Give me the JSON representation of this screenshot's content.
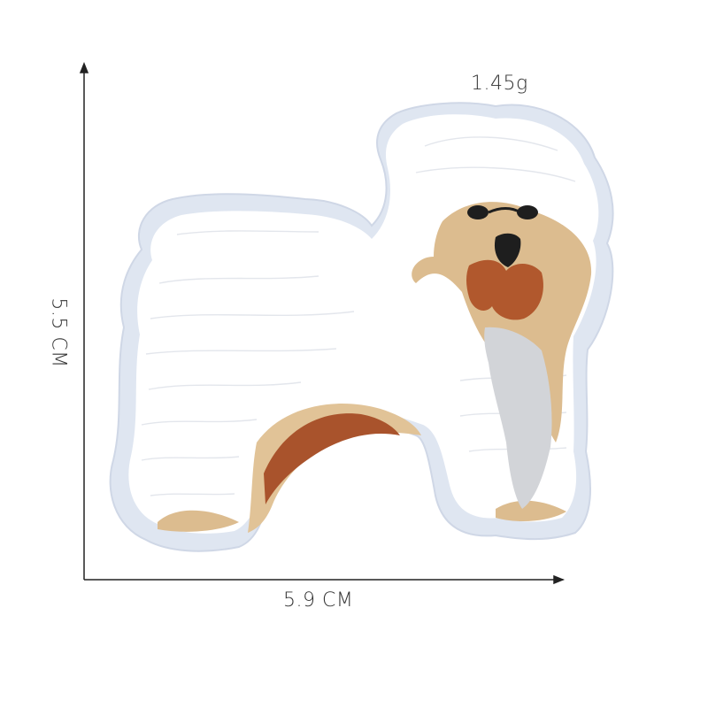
{
  "measurements": {
    "weight": "1.45g",
    "width": "5.9 CM",
    "height": "5.5 CM"
  },
  "product": {
    "subject": "embroidered-dog-patch",
    "colors": {
      "felt_backing": "#dfe6f1",
      "white_fur": "#ffffff",
      "thread_shadow": "#e8eaef",
      "tan": "#d9b98b",
      "brown": "#a9532c",
      "dark": "#222222",
      "gray": "#c7c9cc"
    }
  },
  "annotation_color": "#222222"
}
